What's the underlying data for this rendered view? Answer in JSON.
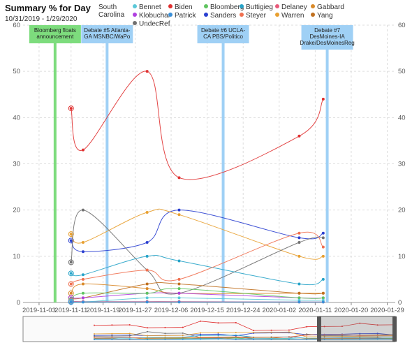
{
  "title": "Summary % for Day",
  "date_range": "10/31/2019 - 1/29/2020",
  "region": "South Carolina",
  "legend": [
    {
      "name": "Bennet",
      "color": "#5bc8d8"
    },
    {
      "name": "Biden",
      "color": "#e03030"
    },
    {
      "name": "Bloomberg",
      "color": "#5fc45f"
    },
    {
      "name": "Buttigieg",
      "color": "#26a3c8"
    },
    {
      "name": "Delaney",
      "color": "#e85a7a"
    },
    {
      "name": "Gabbard",
      "color": "#d98a2a"
    },
    {
      "name": "Klobuchar",
      "color": "#b040e0"
    },
    {
      "name": "Patrick",
      "color": "#3a8fd8"
    },
    {
      "name": "Sanders",
      "color": "#2a3fd0"
    },
    {
      "name": "Steyer",
      "color": "#f07050"
    },
    {
      "name": "Warren",
      "color": "#e8a030"
    },
    {
      "name": "Yang",
      "color": "#c07020"
    },
    {
      "name": "UndecRef",
      "color": "#707070"
    }
  ],
  "chart_data": {
    "type": "line",
    "title": "Summary % for Day",
    "xlabel": "",
    "ylabel": "",
    "ylim": [
      0,
      60
    ],
    "yticks": [
      "0",
      "10",
      "20",
      "30",
      "40",
      "50",
      "60"
    ],
    "xticks": [
      "2019-11-03",
      "2019-11-11",
      "2019-11-19",
      "2019-11-27",
      "2019-12-06",
      "2019-12-15",
      "2019-12-24",
      "2020-01-02",
      "2020-01-11",
      "2020-01-20",
      "2020-01-29"
    ],
    "grid": true,
    "series": [
      {
        "name": "Biden",
        "color": "#e03030",
        "x": [
          "2019-11-11",
          "2019-11-14",
          "2019-11-30",
          "2019-12-08",
          "2020-01-07",
          "2020-01-13"
        ],
        "y": [
          42,
          33,
          50,
          27,
          36,
          44
        ]
      },
      {
        "name": "Sanders",
        "color": "#2a3fd0",
        "x": [
          "2019-11-11",
          "2019-11-14",
          "2019-11-30",
          "2019-12-08",
          "2020-01-07",
          "2020-01-13"
        ],
        "y": [
          13.4,
          11,
          13,
          20,
          14,
          15
        ]
      },
      {
        "name": "Warren",
        "color": "#e8a030",
        "x": [
          "2019-11-11",
          "2019-11-14",
          "2019-11-30",
          "2019-12-08",
          "2020-01-07",
          "2020-01-13"
        ],
        "y": [
          14.8,
          13,
          19.5,
          19,
          10,
          10
        ]
      },
      {
        "name": "UndecRef",
        "color": "#707070",
        "x": [
          "2019-11-11",
          "2019-11-14",
          "2019-11-30",
          "2019-12-08",
          "2020-01-07",
          "2020-01-13"
        ],
        "y": [
          8.7,
          20,
          7,
          2,
          13,
          14
        ]
      },
      {
        "name": "Buttigieg",
        "color": "#26a3c8",
        "x": [
          "2019-11-11",
          "2019-11-14",
          "2019-11-30",
          "2019-12-08",
          "2020-01-07",
          "2020-01-13"
        ],
        "y": [
          6.3,
          6,
          10,
          9,
          4,
          5
        ]
      },
      {
        "name": "Steyer",
        "color": "#f07050",
        "x": [
          "2019-11-11",
          "2019-11-14",
          "2019-11-30",
          "2019-12-08",
          "2020-01-07",
          "2020-01-13"
        ],
        "y": [
          4,
          5,
          7,
          5,
          15,
          12
        ]
      },
      {
        "name": "Gabbard",
        "color": "#d98a2a",
        "x": [
          "2019-11-11",
          "2019-11-14",
          "2019-11-30",
          "2019-12-08",
          "2020-01-07",
          "2020-01-13"
        ],
        "y": [
          2,
          4,
          3,
          2,
          2,
          2
        ]
      },
      {
        "name": "Yang",
        "color": "#c07020",
        "x": [
          "2019-11-11",
          "2019-11-14",
          "2019-11-30",
          "2019-12-08",
          "2020-01-07",
          "2020-01-13"
        ],
        "y": [
          1,
          1,
          4,
          4,
          2,
          2
        ]
      },
      {
        "name": "Klobuchar",
        "color": "#b040e0",
        "x": [
          "2019-11-11",
          "2019-11-14",
          "2019-11-30",
          "2019-12-08",
          "2020-01-07",
          "2020-01-13"
        ],
        "y": [
          1,
          1,
          2,
          2,
          1,
          1
        ]
      },
      {
        "name": "Bloomberg",
        "color": "#5fc45f",
        "x": [
          "2019-11-11",
          "2019-11-14",
          "2019-11-30",
          "2019-12-08",
          "2020-01-07",
          "2020-01-13"
        ],
        "y": [
          0.5,
          2,
          2,
          3,
          1,
          1
        ]
      },
      {
        "name": "Delaney",
        "color": "#e85a7a",
        "x": [
          "2019-11-11",
          "2019-11-14",
          "2019-11-30",
          "2019-12-08",
          "2020-01-07",
          "2020-01-13"
        ],
        "y": [
          0.3,
          0.2,
          0.2,
          0.2,
          0.1,
          0.1
        ]
      },
      {
        "name": "Bennet",
        "color": "#5bc8d8",
        "x": [
          "2019-11-11",
          "2019-11-14",
          "2019-11-30",
          "2019-12-08",
          "2020-01-07",
          "2020-01-13"
        ],
        "y": [
          0.2,
          0.1,
          1,
          1,
          0.5,
          0.5
        ]
      },
      {
        "name": "Patrick",
        "color": "#3a8fd8",
        "x": [
          "2019-11-11",
          "2019-11-14",
          "2019-11-30",
          "2019-12-08",
          "2020-01-07",
          "2020-01-13"
        ],
        "y": [
          0.1,
          0.1,
          0.1,
          0.1,
          0.1,
          0.1
        ]
      }
    ],
    "annotations": [
      {
        "date": "2019-11-07",
        "text": [
          "Bloomberg floats",
          "announcement"
        ],
        "color": "#7ddc7d"
      },
      {
        "date": "2019-11-20",
        "text": [
          "Debate #5 Atlanta-",
          "GA MSNBC/WaPo"
        ],
        "color": "#9fd0f5"
      },
      {
        "date": "2019-12-19",
        "text": [
          "Debate #6 UCLA-",
          "CA PBS/Politico"
        ],
        "color": "#9fd0f5"
      },
      {
        "date": "2020-01-14",
        "text": [
          "Debate #7",
          "DesMoines-IA",
          "Drake/DesMoinesReg"
        ],
        "color": "#9fd0f5"
      }
    ]
  }
}
